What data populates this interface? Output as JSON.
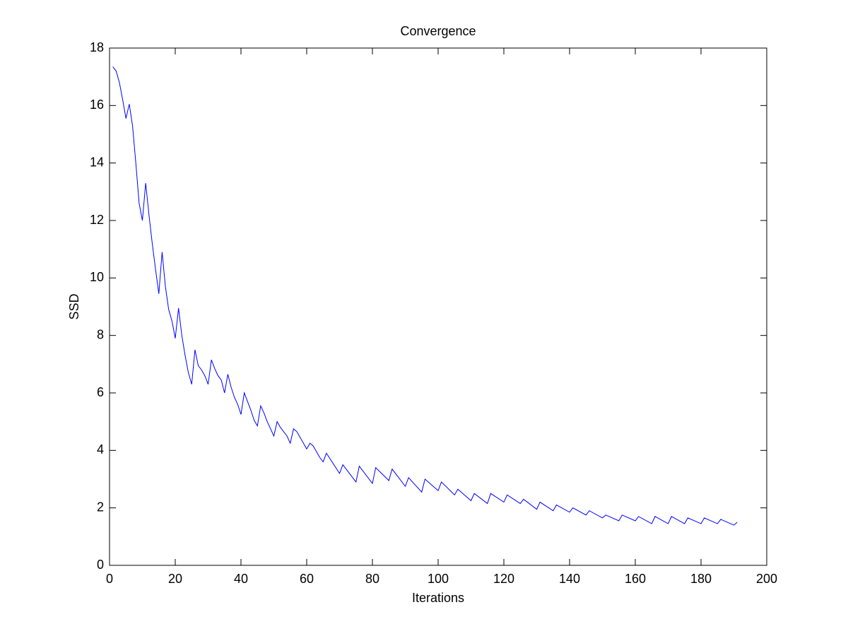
{
  "chart_data": {
    "type": "line",
    "title": "Convergence",
    "xlabel": "Iterations",
    "ylabel": "SSD",
    "x": [
      1,
      2,
      3,
      4,
      5,
      6,
      7,
      8,
      9,
      10,
      11,
      12,
      13,
      14,
      15,
      16,
      17,
      18,
      19,
      20,
      21,
      22,
      23,
      24,
      25,
      26,
      27,
      28,
      29,
      30,
      31,
      32,
      33,
      34,
      35,
      36,
      37,
      38,
      39,
      40,
      41,
      42,
      43,
      44,
      45,
      46,
      47,
      48,
      49,
      50,
      51,
      52,
      53,
      54,
      55,
      56,
      57,
      58,
      59,
      60,
      61,
      62,
      63,
      64,
      65,
      66,
      70,
      71,
      75,
      76,
      80,
      81,
      85,
      86,
      90,
      91,
      95,
      96,
      100,
      101,
      105,
      106,
      110,
      111,
      115,
      116,
      120,
      121,
      125,
      126,
      130,
      131,
      135,
      136,
      140,
      141,
      145,
      146,
      150,
      151,
      155,
      156,
      160,
      161,
      165,
      166,
      170,
      171,
      175,
      176,
      180,
      181,
      185,
      186,
      190,
      191
    ],
    "series": [
      {
        "name": "SSD",
        "color": "#0000ff",
        "values": [
          17.35,
          17.2,
          16.8,
          16.2,
          15.55,
          16.05,
          15.3,
          14.0,
          12.6,
          12.0,
          13.3,
          12.2,
          11.2,
          10.3,
          9.45,
          10.9,
          9.7,
          8.9,
          8.5,
          7.9,
          8.95,
          8.0,
          7.3,
          6.7,
          6.3,
          7.5,
          6.95,
          6.8,
          6.6,
          6.3,
          7.15,
          6.85,
          6.6,
          6.45,
          6.0,
          6.65,
          6.2,
          5.85,
          5.6,
          5.25,
          6.0,
          5.7,
          5.4,
          5.05,
          4.85,
          5.55,
          5.3,
          5.0,
          4.75,
          4.5,
          5.0,
          4.8,
          4.65,
          4.5,
          4.25,
          4.75,
          4.65,
          4.45,
          4.25,
          4.05,
          4.25,
          4.15,
          3.95,
          3.75,
          3.6,
          3.9,
          3.2,
          3.5,
          2.9,
          3.45,
          2.85,
          3.4,
          2.95,
          3.35,
          2.75,
          3.05,
          2.55,
          3.0,
          2.6,
          2.9,
          2.45,
          2.65,
          2.25,
          2.5,
          2.15,
          2.5,
          2.2,
          2.45,
          2.15,
          2.3,
          1.95,
          2.2,
          1.9,
          2.1,
          1.85,
          2.0,
          1.75,
          1.9,
          1.65,
          1.75,
          1.55,
          1.75,
          1.55,
          1.7,
          1.45,
          1.7,
          1.45,
          1.7,
          1.45,
          1.65,
          1.45,
          1.65,
          1.45,
          1.6,
          1.4,
          1.5
        ]
      }
    ],
    "xlim": [
      0,
      200
    ],
    "xticks": [
      0,
      20,
      40,
      60,
      80,
      100,
      120,
      140,
      160,
      180,
      200
    ],
    "ylim": [
      0,
      18
    ],
    "yticks": [
      0,
      2,
      4,
      6,
      8,
      10,
      12,
      14,
      16,
      18
    ]
  }
}
